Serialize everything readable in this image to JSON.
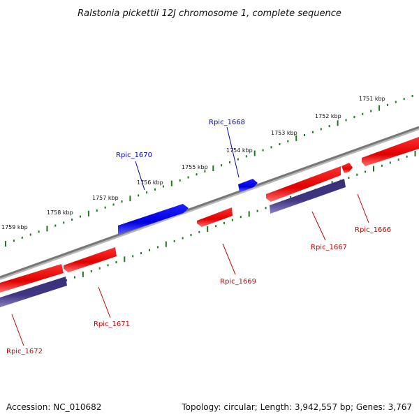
{
  "title": "Ralstonia pickettii 12J chromosome 1, complete sequence",
  "footer": {
    "accession": "Accession: NC_010682",
    "summary": "Topology: circular; Length: 3,942,557 bp; Genes: 3,767"
  },
  "colors": {
    "forward_gene": "#ff0000",
    "reverse_gene": "#0000ff",
    "rna_gene": "#4a3f8a",
    "backbone": "#808080",
    "scale_ticks": "#1a7a1a",
    "label_forward": "#cc0000",
    "label_reverse": "#0000cc"
  },
  "scale_labels": [
    "1751 kbp",
    "1752 kbp",
    "1753 kbp",
    "1754 kbp",
    "1755 kbp",
    "1756 kbp",
    "1757 kbp",
    "1758 kbp",
    "1759 kbp"
  ],
  "genes": [
    {
      "id": "Rpic_1666",
      "strand": "-",
      "color": "red"
    },
    {
      "id": "Rpic_1667",
      "strand": "-",
      "color": "red"
    },
    {
      "id": "Rpic_1668",
      "strand": "+",
      "color": "blue"
    },
    {
      "id": "Rpic_1669",
      "strand": "-",
      "color": "red"
    },
    {
      "id": "Rpic_1670",
      "strand": "+",
      "color": "blue"
    },
    {
      "id": "Rpic_1671",
      "strand": "-",
      "color": "red"
    },
    {
      "id": "Rpic_1672",
      "strand": "-",
      "color": "red"
    }
  ]
}
